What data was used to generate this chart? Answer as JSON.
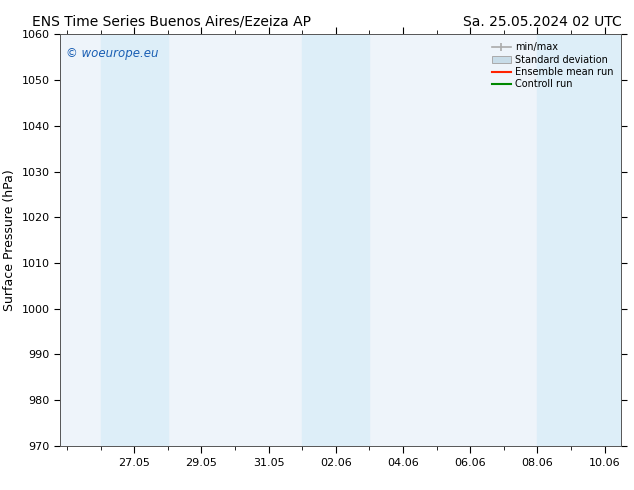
{
  "title_left": "ENS Time Series Buenos Aires/Ezeiza AP",
  "title_right": "Sa. 25.05.2024 02 UTC",
  "ylabel": "Surface Pressure (hPa)",
  "ylim": [
    970,
    1060
  ],
  "yticks": [
    970,
    980,
    990,
    1000,
    1010,
    1020,
    1030,
    1040,
    1050,
    1060
  ],
  "xtick_labels": [
    "27.05",
    "29.05",
    "31.05",
    "02.06",
    "04.06",
    "06.06",
    "08.06",
    "10.06"
  ],
  "shaded_color": "#ddeef8",
  "bg_color": "#ffffff",
  "plot_bg_color": "#eef4fa",
  "watermark_text": "© woeurope.eu",
  "watermark_color": "#1a5fb4",
  "legend_entries": [
    "min/max",
    "Standard deviation",
    "Ensemble mean run",
    "Controll run"
  ],
  "title_fontsize": 10,
  "label_fontsize": 9,
  "tick_fontsize": 8
}
